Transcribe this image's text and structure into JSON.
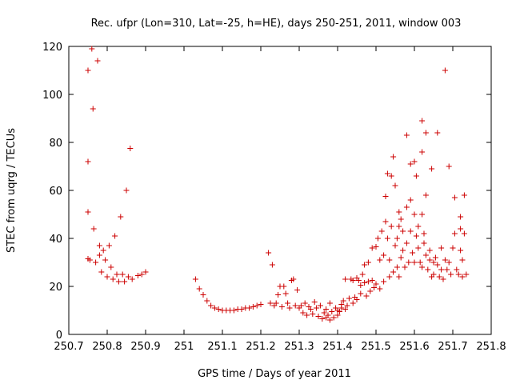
{
  "chart_data": {
    "type": "scatter",
    "title": "Rec. ufpr (Lon=310, Lat=-25, h=HE), days 250-251, 2011, window 003",
    "xlabel": "GPS time / Days of year 2011",
    "ylabel": "STEC from uqrg / TECUs",
    "xlim": [
      250.7,
      251.8
    ],
    "ylim": [
      0,
      120
    ],
    "x_ticks": [
      250.7,
      250.8,
      250.9,
      251,
      251.1,
      251.2,
      251.3,
      251.4,
      251.5,
      251.6,
      251.7,
      251.8
    ],
    "x_tick_labels": [
      "250.7",
      "250.8",
      "250.9",
      "251",
      "251.1",
      "251.2",
      "251.3",
      "251.4",
      "251.5",
      "251.6",
      "251.7",
      "251.8"
    ],
    "y_ticks": [
      0,
      20,
      40,
      60,
      80,
      100,
      120
    ],
    "y_tick_labels": [
      "0",
      "20",
      "40",
      "60",
      "80",
      "100",
      "120"
    ],
    "grid": false,
    "marker": "+",
    "marker_color": "#cc0000",
    "points": [
      [
        250.75,
        110
      ],
      [
        250.75,
        72
      ],
      [
        250.75,
        51
      ],
      [
        250.75,
        31.5
      ],
      [
        250.755,
        31
      ],
      [
        250.76,
        119
      ],
      [
        250.763,
        94
      ],
      [
        250.765,
        44
      ],
      [
        250.77,
        30
      ],
      [
        250.775,
        114
      ],
      [
        250.78,
        37
      ],
      [
        250.78,
        33
      ],
      [
        250.785,
        26
      ],
      [
        250.79,
        35
      ],
      [
        250.795,
        31
      ],
      [
        250.8,
        24
      ],
      [
        250.805,
        37
      ],
      [
        250.81,
        28
      ],
      [
        250.815,
        23
      ],
      [
        250.82,
        41
      ],
      [
        250.825,
        25
      ],
      [
        250.83,
        22
      ],
      [
        250.835,
        49
      ],
      [
        250.84,
        25
      ],
      [
        250.845,
        22
      ],
      [
        250.85,
        60
      ],
      [
        250.855,
        24
      ],
      [
        250.86,
        77.5
      ],
      [
        250.865,
        23
      ],
      [
        250.88,
        24.5
      ],
      [
        250.89,
        25
      ],
      [
        250.9,
        26
      ],
      [
        251.03,
        23
      ],
      [
        251.04,
        19
      ],
      [
        251.05,
        16.5
      ],
      [
        251.06,
        14
      ],
      [
        251.07,
        12
      ],
      [
        251.08,
        11
      ],
      [
        251.09,
        10.5
      ],
      [
        251.1,
        10
      ],
      [
        251.11,
        10
      ],
      [
        251.12,
        10
      ],
      [
        251.13,
        10
      ],
      [
        251.14,
        10.5
      ],
      [
        251.15,
        10.5
      ],
      [
        251.16,
        11
      ],
      [
        251.17,
        11
      ],
      [
        251.18,
        11.5
      ],
      [
        251.19,
        12
      ],
      [
        251.2,
        12.5
      ],
      [
        251.22,
        34
      ],
      [
        251.23,
        29
      ],
      [
        251.225,
        13
      ],
      [
        251.235,
        12
      ],
      [
        251.24,
        13
      ],
      [
        251.245,
        16.5
      ],
      [
        251.25,
        20
      ],
      [
        251.255,
        11.5
      ],
      [
        251.26,
        20
      ],
      [
        251.265,
        17
      ],
      [
        251.27,
        13
      ],
      [
        251.275,
        11
      ],
      [
        251.28,
        22.5
      ],
      [
        251.285,
        23
      ],
      [
        251.29,
        12
      ],
      [
        251.295,
        18.5
      ],
      [
        251.3,
        11
      ],
      [
        251.305,
        12
      ],
      [
        251.31,
        9
      ],
      [
        251.315,
        13
      ],
      [
        251.32,
        8
      ],
      [
        251.325,
        11.5
      ],
      [
        251.33,
        10.5
      ],
      [
        251.335,
        8.5
      ],
      [
        251.34,
        13.5
      ],
      [
        251.345,
        11
      ],
      [
        251.35,
        7.5
      ],
      [
        251.355,
        12
      ],
      [
        251.36,
        6.5
      ],
      [
        251.365,
        9
      ],
      [
        251.37,
        7
      ],
      [
        251.37,
        10.5
      ],
      [
        251.375,
        8
      ],
      [
        251.38,
        6
      ],
      [
        251.38,
        13
      ],
      [
        251.385,
        9.5
      ],
      [
        251.39,
        7
      ],
      [
        251.395,
        11
      ],
      [
        251.4,
        8
      ],
      [
        251.4,
        10
      ],
      [
        251.405,
        9.5
      ],
      [
        251.41,
        11
      ],
      [
        251.41,
        12.5
      ],
      [
        251.415,
        14
      ],
      [
        251.42,
        23
      ],
      [
        251.42,
        10.5
      ],
      [
        251.425,
        12
      ],
      [
        251.43,
        15
      ],
      [
        251.435,
        23
      ],
      [
        251.44,
        13
      ],
      [
        251.44,
        22.5
      ],
      [
        251.445,
        15.5
      ],
      [
        251.45,
        23.5
      ],
      [
        251.45,
        14.5
      ],
      [
        251.455,
        22.5
      ],
      [
        251.46,
        17
      ],
      [
        251.46,
        20.5
      ],
      [
        251.465,
        25
      ],
      [
        251.47,
        21.5
      ],
      [
        251.47,
        29
      ],
      [
        251.475,
        16
      ],
      [
        251.48,
        22
      ],
      [
        251.48,
        30
      ],
      [
        251.485,
        18
      ],
      [
        251.49,
        36
      ],
      [
        251.49,
        22.5
      ],
      [
        251.495,
        19.5
      ],
      [
        251.5,
        36.5
      ],
      [
        251.5,
        21
      ],
      [
        251.505,
        40
      ],
      [
        251.51,
        19
      ],
      [
        251.51,
        31
      ],
      [
        251.515,
        43
      ],
      [
        251.52,
        22
      ],
      [
        251.52,
        33
      ],
      [
        251.525,
        57.5
      ],
      [
        251.525,
        47
      ],
      [
        251.53,
        67
      ],
      [
        251.53,
        40
      ],
      [
        251.535,
        24
      ],
      [
        251.535,
        31
      ],
      [
        251.54,
        66
      ],
      [
        251.54,
        45
      ],
      [
        251.545,
        26
      ],
      [
        251.545,
        74
      ],
      [
        251.55,
        62
      ],
      [
        251.55,
        37
      ],
      [
        251.555,
        40
      ],
      [
        251.555,
        28
      ],
      [
        251.56,
        51
      ],
      [
        251.56,
        45
      ],
      [
        251.56,
        24
      ],
      [
        251.565,
        48
      ],
      [
        251.565,
        32
      ],
      [
        251.57,
        35
      ],
      [
        251.57,
        43
      ],
      [
        251.575,
        28
      ],
      [
        251.58,
        83
      ],
      [
        251.58,
        53
      ],
      [
        251.58,
        38
      ],
      [
        251.585,
        30
      ],
      [
        251.59,
        56
      ],
      [
        251.59,
        71
      ],
      [
        251.59,
        43
      ],
      [
        251.595,
        34
      ],
      [
        251.6,
        72
      ],
      [
        251.6,
        50
      ],
      [
        251.6,
        30
      ],
      [
        251.605,
        66
      ],
      [
        251.605,
        41
      ],
      [
        251.61,
        36
      ],
      [
        251.61,
        45
      ],
      [
        251.615,
        30
      ],
      [
        251.62,
        89
      ],
      [
        251.62,
        76
      ],
      [
        251.62,
        50
      ],
      [
        251.62,
        28
      ],
      [
        251.625,
        42
      ],
      [
        251.625,
        38
      ],
      [
        251.63,
        84
      ],
      [
        251.63,
        58
      ],
      [
        251.63,
        33
      ],
      [
        251.635,
        27
      ],
      [
        251.64,
        35
      ],
      [
        251.64,
        31
      ],
      [
        251.645,
        69
      ],
      [
        251.645,
        24
      ],
      [
        251.65,
        30
      ],
      [
        251.65,
        25
      ],
      [
        251.655,
        32
      ],
      [
        251.66,
        84
      ],
      [
        251.66,
        29
      ],
      [
        251.665,
        24
      ],
      [
        251.67,
        27
      ],
      [
        251.67,
        36
      ],
      [
        251.675,
        23
      ],
      [
        251.68,
        110
      ],
      [
        251.68,
        31
      ],
      [
        251.685,
        27
      ],
      [
        251.69,
        70
      ],
      [
        251.69,
        30
      ],
      [
        251.695,
        25
      ],
      [
        251.7,
        36
      ],
      [
        251.705,
        42
      ],
      [
        251.705,
        57
      ],
      [
        251.71,
        27
      ],
      [
        251.715,
        25
      ],
      [
        251.72,
        35
      ],
      [
        251.72,
        44
      ],
      [
        251.72,
        49
      ],
      [
        251.725,
        31
      ],
      [
        251.725,
        24
      ],
      [
        251.73,
        42
      ],
      [
        251.73,
        58
      ],
      [
        251.735,
        25
      ]
    ]
  }
}
